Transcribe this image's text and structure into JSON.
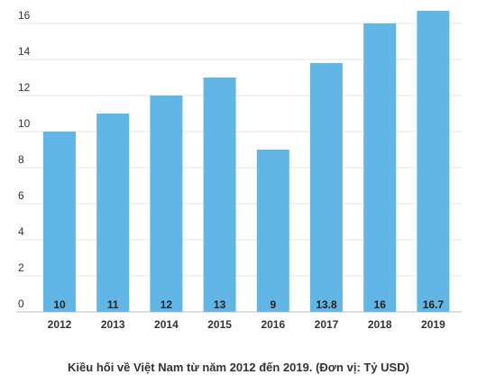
{
  "chart_data": {
    "type": "bar",
    "categories": [
      "2012",
      "2013",
      "2014",
      "2015",
      "2016",
      "2017",
      "2018",
      "2019"
    ],
    "values": [
      10,
      11,
      12,
      13,
      9,
      13.8,
      16,
      16.7
    ],
    "data_labels": [
      "10",
      "11",
      "12",
      "13",
      "9",
      "13.8",
      "16",
      "16.7"
    ],
    "ylim": [
      0,
      16
    ],
    "yticks": [
      "0",
      "2",
      "4",
      "6",
      "8",
      "10",
      "12",
      "14",
      "16"
    ],
    "grid": true,
    "bar_color": "#62b6e6",
    "caption": "Kiều hối về Việt Nam từ năm 2012 đến 2019. (Đơn vị: Tỷ USD)"
  }
}
